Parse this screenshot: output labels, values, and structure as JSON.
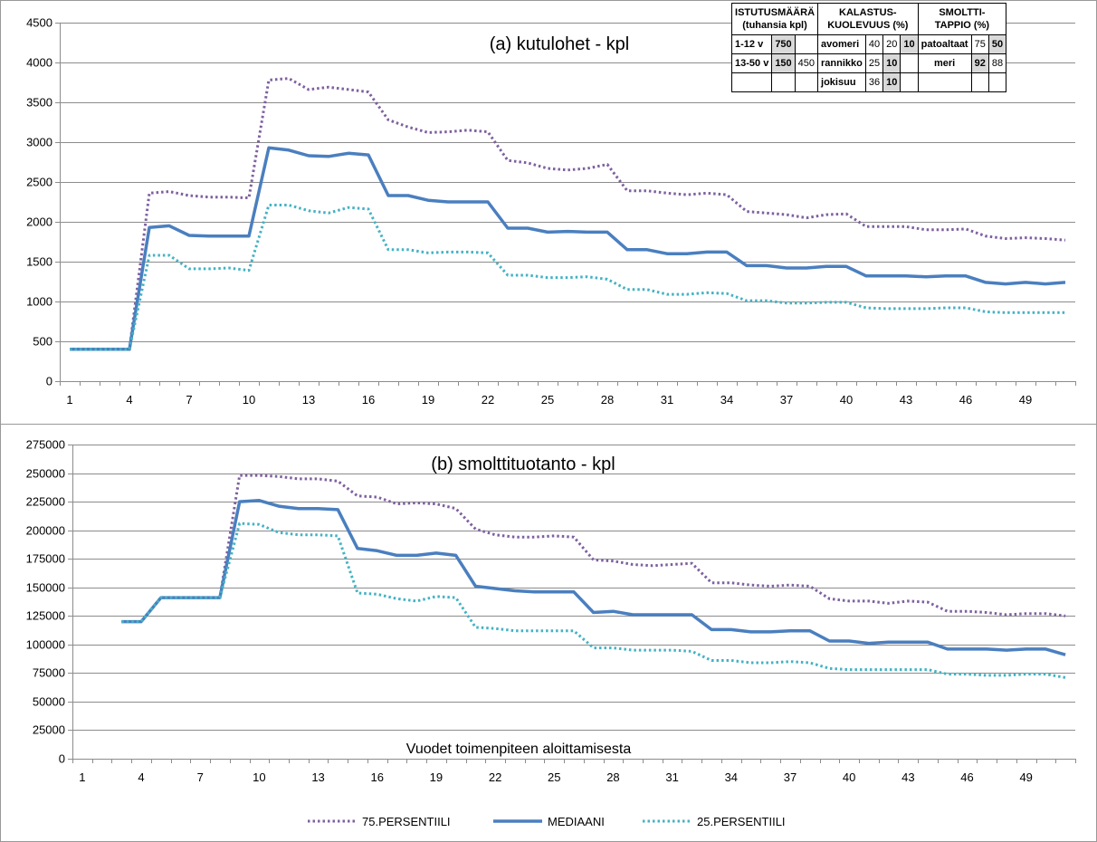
{
  "chart_data": [
    {
      "type": "line",
      "title": "(a) kutulohet - kpl",
      "xlabel": "",
      "ylabel": "",
      "ylim": [
        0,
        4500
      ],
      "yticks": [
        0,
        500,
        1000,
        1500,
        2000,
        2500,
        3000,
        3500,
        4000,
        4500
      ],
      "xticks": [
        1,
        4,
        7,
        10,
        13,
        16,
        19,
        22,
        25,
        28,
        31,
        34,
        37,
        40,
        43,
        46,
        49
      ],
      "grid": "horizontal",
      "x": [
        1,
        2,
        3,
        4,
        5,
        6,
        7,
        8,
        9,
        10,
        11,
        12,
        13,
        14,
        15,
        16,
        17,
        18,
        19,
        20,
        21,
        22,
        23,
        24,
        25,
        26,
        27,
        28,
        29,
        30,
        31,
        32,
        33,
        34,
        35,
        36,
        37,
        38,
        39,
        40,
        41,
        42,
        43,
        44,
        45,
        46,
        47,
        48,
        49,
        50,
        51
      ],
      "series": [
        {
          "name": "75.PERSENTIILI",
          "color": "#7e60a0",
          "style": "dotted",
          "values": [
            400,
            400,
            400,
            400,
            2360,
            2380,
            2330,
            2310,
            2310,
            2300,
            3780,
            3800,
            3660,
            3690,
            3660,
            3630,
            3280,
            3190,
            3120,
            3130,
            3150,
            3130,
            2770,
            2740,
            2670,
            2650,
            2670,
            2720,
            2390,
            2390,
            2360,
            2340,
            2360,
            2340,
            2130,
            2110,
            2090,
            2050,
            2090,
            2100,
            1940,
            1940,
            1940,
            1900,
            1900,
            1910,
            1820,
            1790,
            1800,
            1790,
            1770
          ]
        },
        {
          "name": "MEDIAANI",
          "color": "#4a7fbf",
          "style": "solid",
          "values": [
            400,
            400,
            400,
            400,
            1930,
            1950,
            1830,
            1820,
            1820,
            1820,
            2930,
            2900,
            2830,
            2820,
            2860,
            2840,
            2330,
            2330,
            2270,
            2250,
            2250,
            2250,
            1920,
            1920,
            1870,
            1880,
            1870,
            1870,
            1650,
            1650,
            1600,
            1600,
            1620,
            1620,
            1450,
            1450,
            1420,
            1420,
            1440,
            1440,
            1320,
            1320,
            1320,
            1310,
            1320,
            1320,
            1240,
            1220,
            1240,
            1220,
            1240
          ]
        },
        {
          "name": "25.PERSENTIILI",
          "color": "#44b2c4",
          "style": "dotted",
          "values": [
            400,
            400,
            400,
            400,
            1580,
            1580,
            1410,
            1410,
            1420,
            1390,
            2210,
            2210,
            2140,
            2110,
            2180,
            2160,
            1650,
            1650,
            1610,
            1620,
            1620,
            1610,
            1330,
            1330,
            1300,
            1300,
            1310,
            1280,
            1150,
            1150,
            1090,
            1090,
            1110,
            1100,
            1010,
            1010,
            980,
            980,
            990,
            990,
            920,
            910,
            910,
            910,
            920,
            920,
            870,
            860,
            860,
            860,
            860
          ]
        }
      ]
    },
    {
      "type": "line",
      "title": "(b) smolttituotanto - kpl",
      "xlabel": "Vuodet toimenpiteen aloittamisesta",
      "ylabel": "",
      "ylim": [
        0,
        275000
      ],
      "yticks": [
        0,
        25000,
        50000,
        75000,
        100000,
        125000,
        150000,
        175000,
        200000,
        225000,
        250000,
        275000
      ],
      "xticks": [
        1,
        4,
        7,
        10,
        13,
        16,
        19,
        22,
        25,
        28,
        31,
        34,
        37,
        40,
        43,
        46,
        49
      ],
      "grid": "horizontal",
      "legend": "bottom",
      "x": [
        3,
        4,
        5,
        6,
        7,
        8,
        9,
        10,
        11,
        12,
        13,
        14,
        15,
        16,
        17,
        18,
        19,
        20,
        21,
        22,
        23,
        24,
        25,
        26,
        27,
        28,
        29,
        30,
        31,
        32,
        33,
        34,
        35,
        36,
        37,
        38,
        39,
        40,
        41,
        42,
        43,
        44,
        45,
        46,
        47,
        48,
        49,
        50,
        51
      ],
      "series": [
        {
          "name": "75.PERSENTIILI",
          "color": "#7e60a0",
          "style": "dotted",
          "values": [
            120000,
            120000,
            141000,
            141000,
            141000,
            141000,
            248000,
            248000,
            247000,
            245000,
            245000,
            243000,
            230000,
            229000,
            223000,
            224000,
            223000,
            219000,
            201000,
            196000,
            194000,
            194000,
            195000,
            194000,
            174000,
            173000,
            170000,
            169000,
            170000,
            171000,
            154000,
            154000,
            152000,
            151000,
            152000,
            151000,
            140000,
            138000,
            138000,
            136000,
            138000,
            137000,
            129000,
            129000,
            128000,
            126000,
            127000,
            127000,
            125000
          ]
        },
        {
          "name": "MEDIAANI",
          "color": "#4a7fbf",
          "style": "solid",
          "values": [
            120000,
            120000,
            141000,
            141000,
            141000,
            141000,
            225000,
            226000,
            221000,
            219000,
            219000,
            218000,
            184000,
            182000,
            178000,
            178000,
            180000,
            178000,
            151000,
            149000,
            147000,
            146000,
            146000,
            146000,
            128000,
            129000,
            126000,
            126000,
            126000,
            126000,
            113000,
            113000,
            111000,
            111000,
            112000,
            112000,
            103000,
            103000,
            101000,
            102000,
            102000,
            102000,
            96000,
            96000,
            96000,
            95000,
            96000,
            96000,
            91000
          ]
        },
        {
          "name": "25.PERSENTIILI",
          "color": "#44b2c4",
          "style": "dotted",
          "values": [
            120000,
            120000,
            141000,
            141000,
            141000,
            141000,
            206000,
            205000,
            198000,
            196000,
            196000,
            195000,
            145000,
            144000,
            140000,
            138000,
            142000,
            141000,
            115000,
            114000,
            112000,
            112000,
            112000,
            112000,
            97000,
            97000,
            95000,
            95000,
            95000,
            94000,
            86000,
            86000,
            84000,
            84000,
            85000,
            84000,
            79000,
            78000,
            78000,
            78000,
            78000,
            78000,
            74000,
            74000,
            73000,
            73000,
            74000,
            74000,
            71000
          ]
        }
      ]
    }
  ],
  "legend": {
    "items": [
      "75.PERSENTIILI",
      "MEDIAANI",
      "25.PERSENTIILI"
    ]
  },
  "table": {
    "h1": "ISTUTUSMÄÄRÄ",
    "h1b": "(tuhansia kpl)",
    "h2": "KALASTUS-",
    "h2b": "KUOLEVUUS (%)",
    "h3": "SMOLTTI-",
    "h3b": "TAPPIO (%)",
    "r1": {
      "a": "1-12 v",
      "b": "750",
      "c": "",
      "d": "avomeri",
      "e": "40",
      "f": "20",
      "g": "10",
      "h": "patoaltaat",
      "i": "75",
      "j": "50"
    },
    "r2": {
      "a": "13-50 v",
      "b": "150",
      "c": "450",
      "d": "rannikko",
      "e": "25",
      "f": "10",
      "g": "",
      "h": "meri",
      "i": "92",
      "j": "88"
    },
    "r3": {
      "a": "",
      "b": "",
      "c": "",
      "d": "jokisuu",
      "e": "36",
      "f": "10",
      "g": "",
      "h": "",
      "i": "",
      "j": ""
    }
  }
}
